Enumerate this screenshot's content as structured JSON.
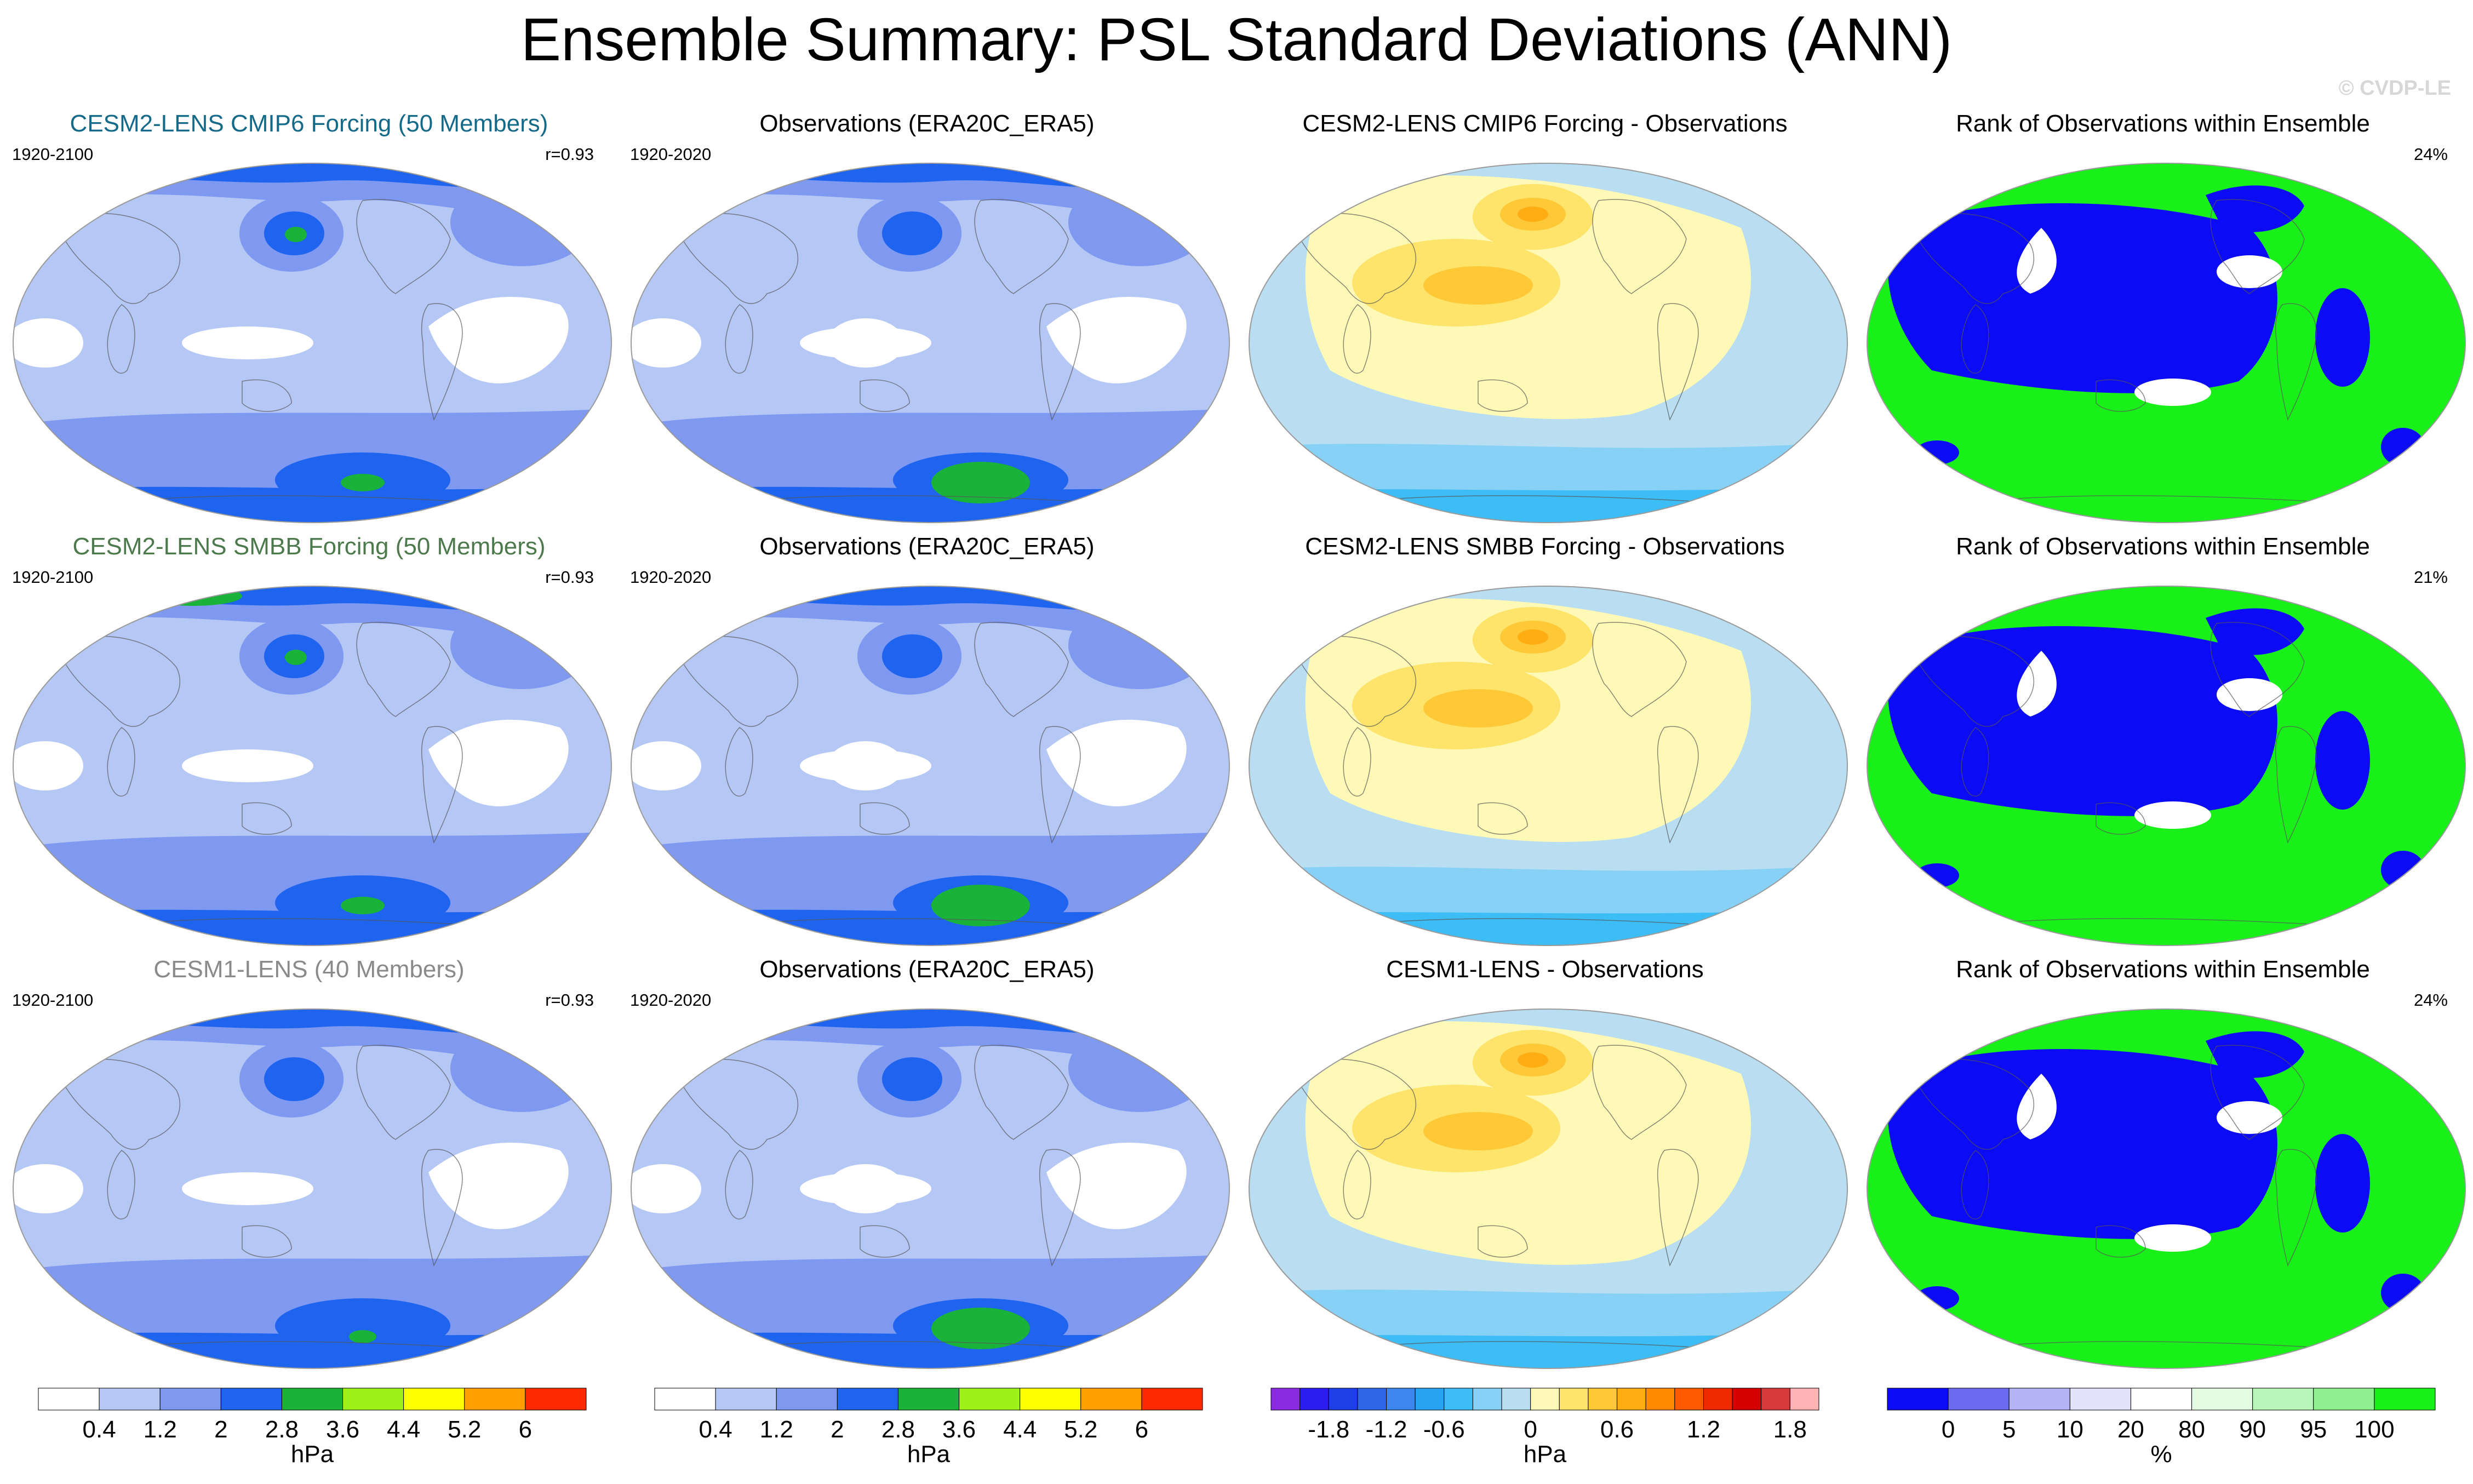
{
  "title": "Ensemble Summary: PSL Standard Deviations (ANN)",
  "watermark": "© CVDP-LE",
  "rows": [
    {
      "model": {
        "title": "CESM2-LENS CMIP6 Forcing (50 Members)",
        "title_color": "#156a8a",
        "period": "1920-2100",
        "r": "r=0.93"
      },
      "obs": {
        "title": "Observations (ERA20C_ERA5)",
        "period": "1920-2020"
      },
      "diff": {
        "title": "CESM2-LENS CMIP6 Forcing - Observations"
      },
      "rank": {
        "title": "Rank of Observations within Ensemble",
        "pct": "24%"
      }
    },
    {
      "model": {
        "title": "CESM2-LENS SMBB Forcing (50 Members)",
        "title_color": "#4c7a4c",
        "period": "1920-2100",
        "r": "r=0.93"
      },
      "obs": {
        "title": "Observations (ERA20C_ERA5)",
        "period": "1920-2020"
      },
      "diff": {
        "title": "CESM2-LENS SMBB Forcing - Observations"
      },
      "rank": {
        "title": "Rank of Observations within Ensemble",
        "pct": "21%"
      }
    },
    {
      "model": {
        "title": "CESM1-LENS (40 Members)",
        "title_color": "#8a8a8a",
        "period": "1920-2100",
        "r": "r=0.93"
      },
      "obs": {
        "title": "Observations (ERA20C_ERA5)",
        "period": "1920-2020"
      },
      "diff": {
        "title": "CESM1-LENS - Observations"
      },
      "rank": {
        "title": "Rank of Observations within Ensemble",
        "pct": "24%"
      }
    }
  ],
  "colorbars": [
    {
      "name": "std-model",
      "unit": "hPa",
      "colors": [
        "#ffffff",
        "#b5c8f5",
        "#7f98f0",
        "#1e64ef",
        "#1ab33a",
        "#9ef21a",
        "#ffff00",
        "#ff9f00",
        "#ff2a00"
      ],
      "labels": [
        "0.4",
        "1.2",
        "2",
        "2.8",
        "3.6",
        "4.4",
        "5.2",
        "6"
      ]
    },
    {
      "name": "std-obs",
      "unit": "hPa",
      "colors": [
        "#ffffff",
        "#b5c8f5",
        "#7f98f0",
        "#1e64ef",
        "#1ab33a",
        "#9ef21a",
        "#ffff00",
        "#ff9f00",
        "#ff2a00"
      ],
      "labels": [
        "0.4",
        "1.2",
        "2",
        "2.8",
        "3.6",
        "4.4",
        "5.2",
        "6"
      ]
    },
    {
      "name": "difference",
      "unit": "hPa",
      "colors": [
        "#8a2be2",
        "#2b1df0",
        "#1f3fe6",
        "#2e66e8",
        "#3d86ee",
        "#27a3f2",
        "#3dbdf5",
        "#86d1f5",
        "#b9def2",
        "#fff9b8",
        "#ffe46b",
        "#ffc837",
        "#ffad12",
        "#ff8a00",
        "#ff5a00",
        "#f02a00",
        "#d40000",
        "#d73a3a",
        "#ffb3b3"
      ],
      "labels": [
        "-1.8",
        "-1.2",
        "-0.6",
        "0",
        "0.6",
        "1.2",
        "1.8"
      ],
      "label_positions": [
        1,
        3,
        5,
        8,
        11,
        14,
        17
      ]
    },
    {
      "name": "rank",
      "unit": "%",
      "colors": [
        "#0b0bf5",
        "#6b6bf2",
        "#b3b3f5",
        "#e2e2fb",
        "#ffffff",
        "#e3fbe3",
        "#b8f5b8",
        "#8ff08f",
        "#19f019"
      ],
      "labels": [
        "0",
        "5",
        "10",
        "20",
        "80",
        "90",
        "95",
        "100"
      ]
    }
  ],
  "chart_data": [
    {
      "type": "heatmap",
      "name": "model-std-maps",
      "titles": [
        "CESM2-LENS CMIP6 Forcing (50 Members)",
        "CESM2-LENS SMBB Forcing (50 Members)",
        "CESM1-LENS (40 Members)"
      ],
      "variable": "PSL standard deviation",
      "units": "hPa",
      "levels": [
        0.4,
        1.2,
        2,
        2.8,
        3.6,
        4.4,
        5.2,
        6
      ],
      "periods": [
        "1920-2100",
        "1920-2100",
        "1920-2100"
      ],
      "pattern_correlation": [
        0.93,
        0.93,
        0.93
      ]
    },
    {
      "type": "heatmap",
      "name": "observed-std-maps",
      "title": "Observations (ERA20C_ERA5)",
      "units": "hPa",
      "levels": [
        0.4,
        1.2,
        2,
        2.8,
        3.6,
        4.4,
        5.2,
        6
      ],
      "period": "1920-2020"
    },
    {
      "type": "heatmap",
      "name": "difference-maps",
      "titles": [
        "CESM2-LENS CMIP6 Forcing - Observations",
        "CESM2-LENS SMBB Forcing - Observations",
        "CESM1-LENS - Observations"
      ],
      "units": "hPa",
      "levels": [
        -1.8,
        -1.2,
        -0.6,
        0,
        0.6,
        1.2,
        1.8
      ]
    },
    {
      "type": "heatmap",
      "name": "rank-maps",
      "title": "Rank of Observations within Ensemble",
      "units": "%",
      "levels": [
        0,
        5,
        10,
        20,
        80,
        90,
        95,
        100
      ],
      "area_percent": [
        24,
        21,
        24
      ]
    }
  ]
}
